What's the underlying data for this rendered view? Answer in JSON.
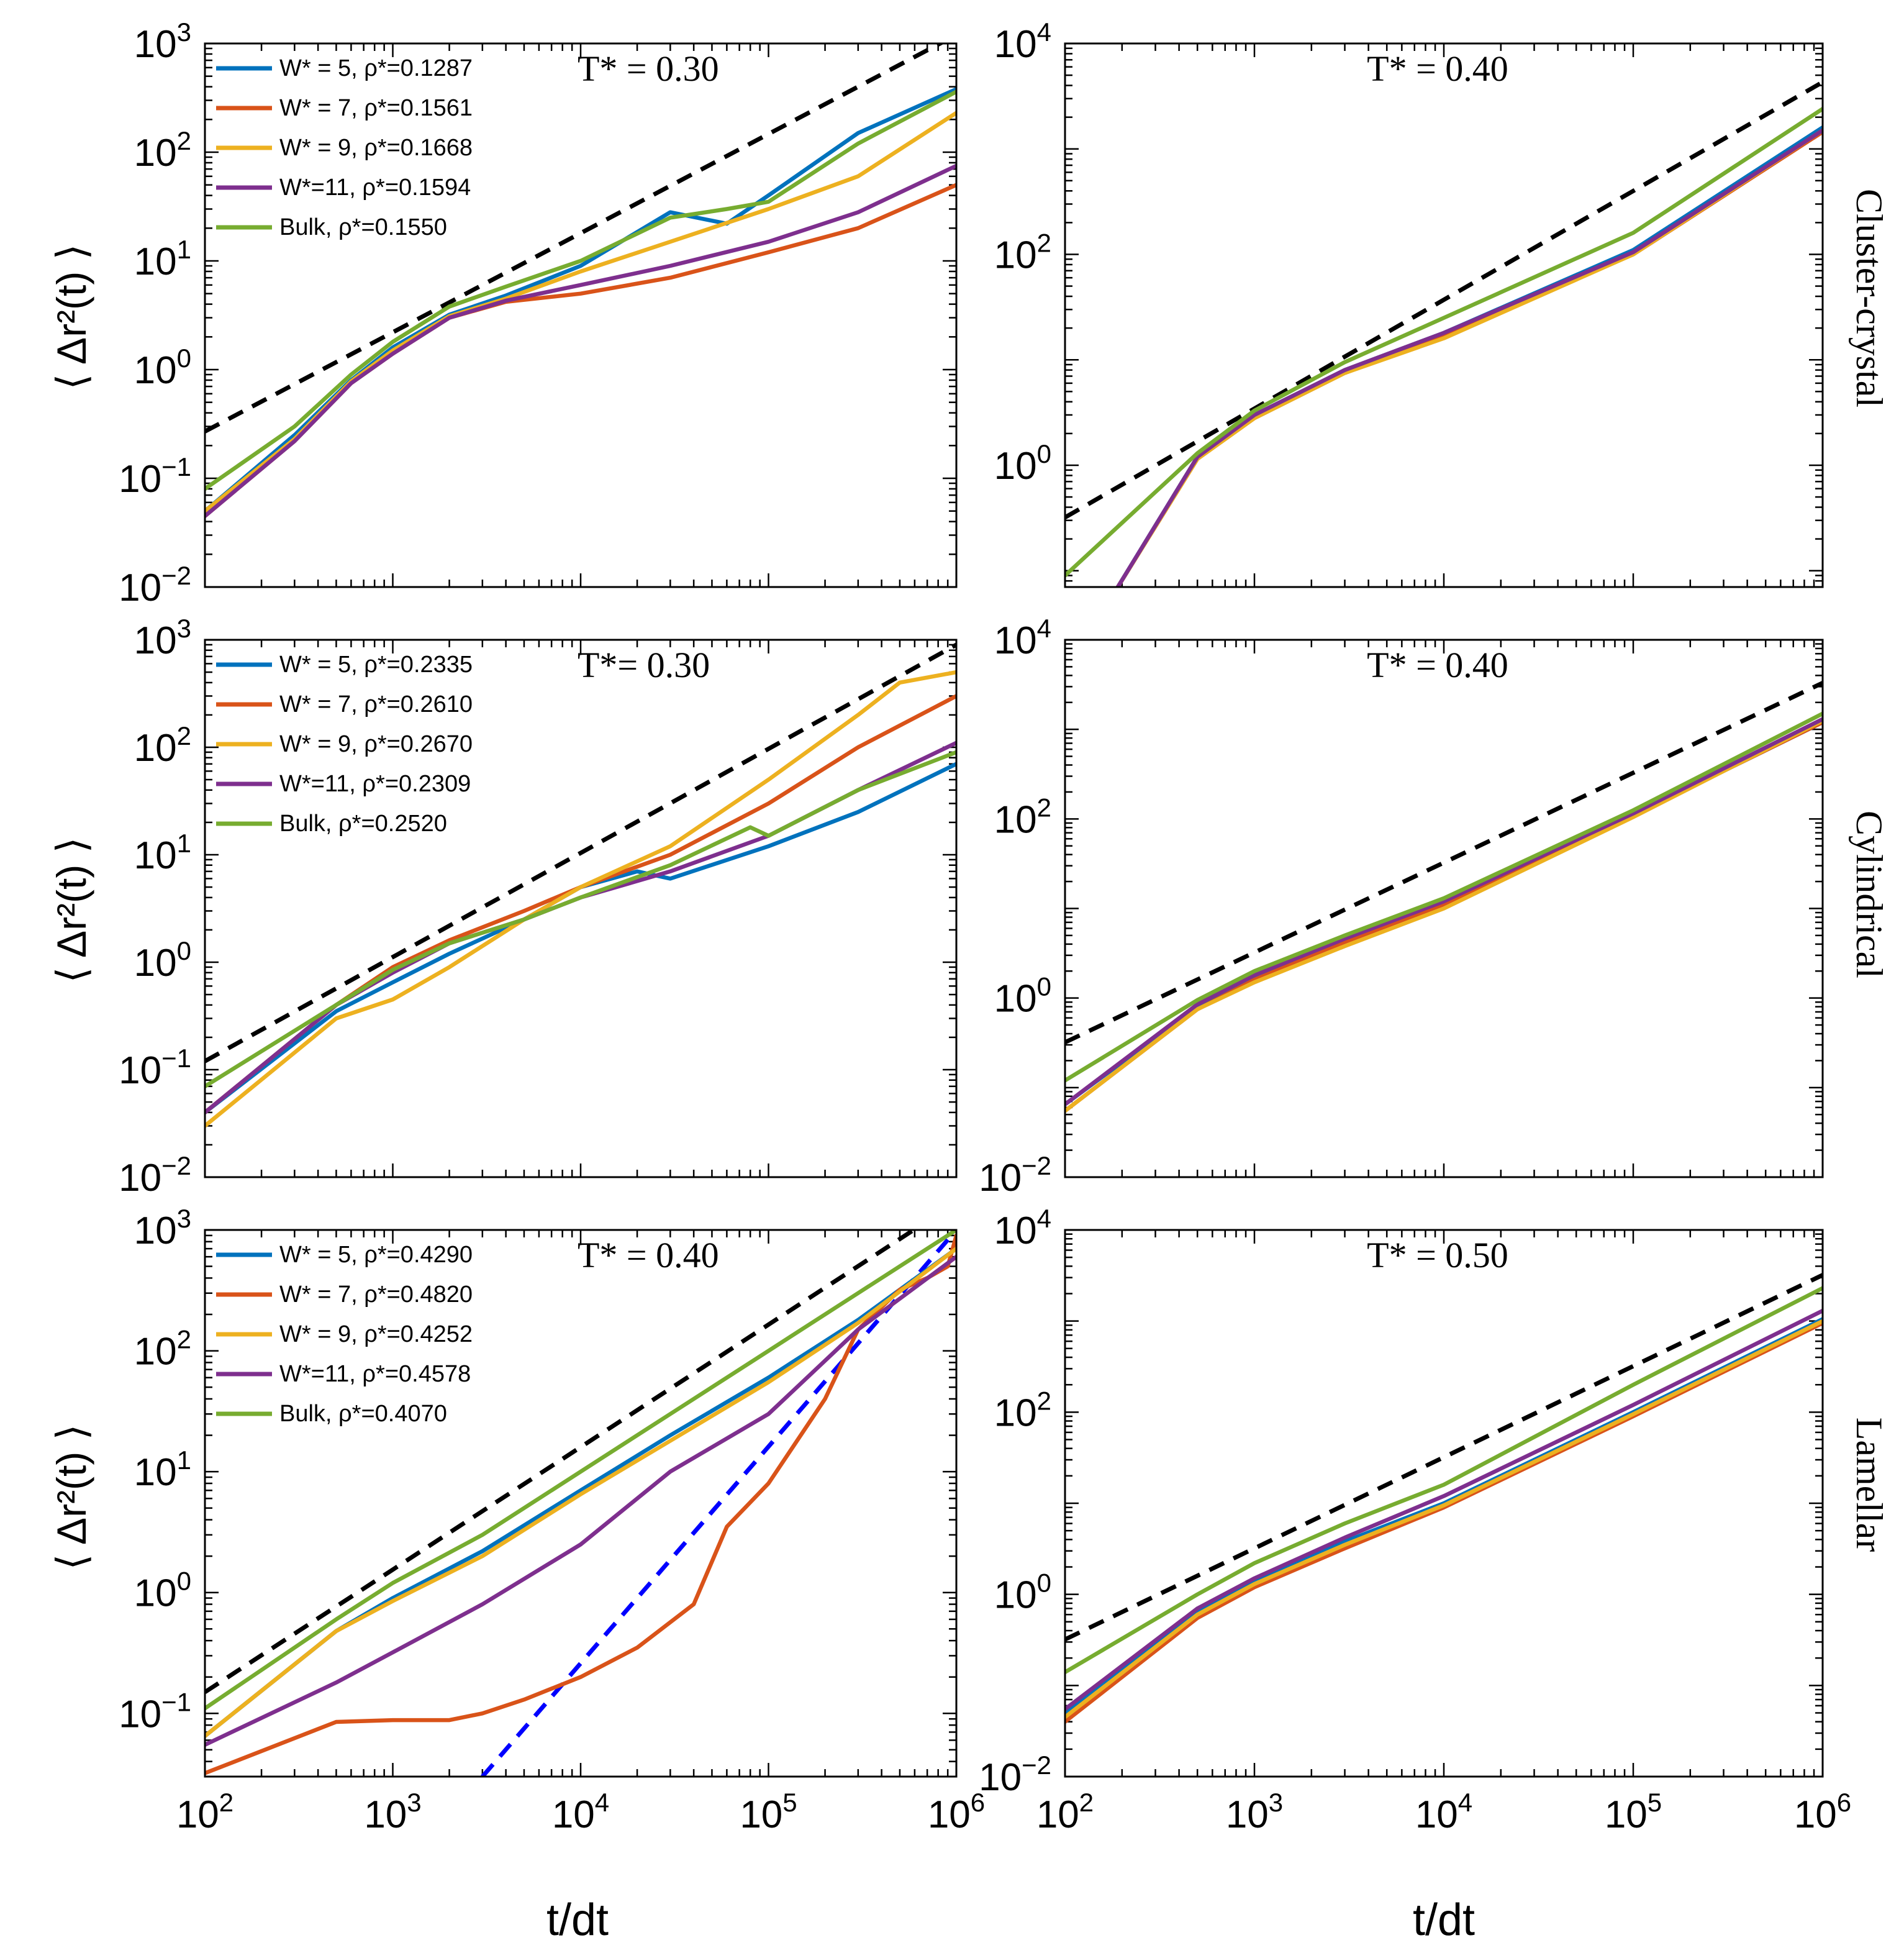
{
  "figure": {
    "xlabel": "t/dt",
    "ylabel": "⟨ Δr²(t) ⟩",
    "colors": {
      "blue": "#0072BD",
      "orange": "#D95319",
      "yellow": "#EDB120",
      "purple": "#7E2F8E",
      "green": "#77AC30",
      "ref_black": "#000000",
      "ref_blue": "#0000FF"
    },
    "x_ticks": [
      "10^2",
      "10^3",
      "10^4",
      "10^5",
      "10^6"
    ],
    "row_labels": [
      "Cluster-crystal",
      "Cylindrical",
      "Lamellar"
    ]
  },
  "chart_data": [
    {
      "id": "cluster-left",
      "type": "line",
      "title": "T* = 0.30",
      "xlim": [
        100,
        1000000
      ],
      "ylim": [
        0.01,
        1000
      ],
      "x_ticks": [
        100,
        1000,
        10000,
        100000,
        1000000
      ],
      "y_ticks": [
        0.01,
        0.1,
        1,
        10,
        100,
        1000
      ],
      "legend": [
        {
          "label": "W* = 5, ρ*=0.1287",
          "color": "blue"
        },
        {
          "label": "W* = 7, ρ*=0.1561",
          "color": "orange"
        },
        {
          "label": "W* = 9, ρ*=0.1668",
          "color": "yellow"
        },
        {
          "label": "W*=11, ρ*=0.1594",
          "color": "purple"
        },
        {
          "label": "Bulk,    ρ*=0.1550",
          "color": "green"
        }
      ],
      "reference_lines": [
        {
          "color": "ref_black",
          "x": [
            100,
            1000000
          ],
          "y": [
            0.27,
            1200
          ]
        }
      ],
      "series": [
        {
          "name": "W* = 5",
          "color": "blue",
          "x": [
            100,
            300,
            600,
            1000,
            2000,
            4000,
            10000,
            30000,
            60000,
            100000,
            300000,
            1000000
          ],
          "y": [
            0.05,
            0.25,
            0.8,
            1.6,
            3.2,
            4.8,
            9,
            28,
            22,
            40,
            150,
            380
          ]
        },
        {
          "name": "W* = 7",
          "color": "orange",
          "x": [
            100,
            300,
            600,
            1000,
            2000,
            4000,
            10000,
            30000,
            100000,
            300000,
            1000000
          ],
          "y": [
            0.045,
            0.22,
            0.75,
            1.4,
            3.0,
            4.2,
            5,
            7,
            12,
            20,
            50
          ]
        },
        {
          "name": "W* = 9",
          "color": "yellow",
          "x": [
            100,
            300,
            600,
            1000,
            2000,
            4000,
            10000,
            30000,
            100000,
            300000,
            1000000
          ],
          "y": [
            0.05,
            0.23,
            0.78,
            1.5,
            3.1,
            4.5,
            8,
            15,
            30,
            60,
            230
          ]
        },
        {
          "name": "W*=11",
          "color": "purple",
          "x": [
            100,
            300,
            600,
            1000,
            2000,
            4000,
            10000,
            30000,
            100000,
            300000,
            1000000
          ],
          "y": [
            0.045,
            0.22,
            0.75,
            1.4,
            3.0,
            4.3,
            6,
            9,
            15,
            28,
            75
          ]
        },
        {
          "name": "Bulk",
          "color": "green",
          "x": [
            100,
            300,
            600,
            1000,
            2000,
            4000,
            10000,
            30000,
            60000,
            100000,
            300000,
            1000000
          ],
          "y": [
            0.08,
            0.3,
            0.9,
            1.8,
            3.8,
            5.8,
            10,
            25,
            30,
            35,
            120,
            360
          ]
        }
      ]
    },
    {
      "id": "cluster-right",
      "type": "line",
      "title": "T* = 0.40",
      "side_label": "Cluster-crystal",
      "xlim": [
        100,
        1000000
      ],
      "ylim": [
        0.07,
        10000
      ],
      "x_ticks": [
        100,
        1000,
        10000,
        100000,
        1000000
      ],
      "y_ticks": [
        1,
        100,
        10000
      ],
      "reference_lines": [
        {
          "color": "ref_black",
          "x": [
            100,
            1000000
          ],
          "y": [
            0.32,
            4300
          ]
        }
      ],
      "series": [
        {
          "name": "W* = 5",
          "color": "blue",
          "x": [
            190,
            500,
            1000,
            3000,
            10000,
            100000,
            1000000
          ],
          "y": [
            0.07,
            1.2,
            3,
            8,
            18,
            110,
            1600
          ]
        },
        {
          "name": "W* = 7",
          "color": "orange",
          "x": [
            190,
            500,
            1000,
            3000,
            10000,
            100000,
            1000000
          ],
          "y": [
            0.07,
            1.15,
            2.8,
            7.5,
            17,
            100,
            1450
          ]
        },
        {
          "name": "W* = 9",
          "color": "yellow",
          "x": [
            190,
            500,
            1000,
            3000,
            10000,
            100000,
            1000000
          ],
          "y": [
            0.07,
            1.15,
            2.8,
            7.5,
            16,
            100,
            1500
          ]
        },
        {
          "name": "W*=11",
          "color": "purple",
          "x": [
            190,
            500,
            1000,
            3000,
            10000,
            100000,
            1000000
          ],
          "y": [
            0.07,
            1.2,
            3,
            8,
            18,
            105,
            1500
          ]
        },
        {
          "name": "Bulk",
          "color": "green",
          "x": [
            100,
            500,
            1000,
            3000,
            10000,
            100000,
            1000000
          ],
          "y": [
            0.09,
            1.3,
            3.3,
            9.5,
            25,
            160,
            2400
          ]
        }
      ]
    },
    {
      "id": "cyl-left",
      "type": "line",
      "title": "T*= 0.30",
      "xlim": [
        100,
        1000000
      ],
      "ylim": [
        0.01,
        1000
      ],
      "x_ticks": [
        100,
        1000,
        10000,
        100000,
        1000000
      ],
      "y_ticks": [
        0.01,
        0.1,
        1,
        10,
        100,
        1000
      ],
      "legend": [
        {
          "label": "W* = 5, ρ*=0.2335",
          "color": "blue"
        },
        {
          "label": "W* = 7, ρ*=0.2610",
          "color": "orange"
        },
        {
          "label": "W* = 9, ρ*=0.2670",
          "color": "yellow"
        },
        {
          "label": "W*=11, ρ*=0.2309",
          "color": "purple"
        },
        {
          "label": "Bulk,    ρ*=0.2520",
          "color": "green"
        }
      ],
      "reference_lines": [
        {
          "color": "ref_black",
          "x": [
            100,
            1000000
          ],
          "y": [
            0.12,
            900
          ]
        }
      ],
      "series": [
        {
          "name": "W* = 5",
          "color": "blue",
          "x": [
            100,
            500,
            1000,
            2000,
            5000,
            10000,
            20000,
            30000,
            100000,
            300000,
            1000000
          ],
          "y": [
            0.04,
            0.35,
            0.65,
            1.2,
            2.5,
            5,
            7,
            6,
            12,
            25,
            70
          ]
        },
        {
          "name": "W* = 7",
          "color": "orange",
          "x": [
            100,
            500,
            1000,
            2000,
            5000,
            10000,
            30000,
            100000,
            300000,
            1000000
          ],
          "y": [
            0.04,
            0.4,
            0.9,
            1.6,
            3,
            5,
            10,
            30,
            100,
            300
          ]
        },
        {
          "name": "W* = 9",
          "color": "yellow",
          "x": [
            100,
            500,
            1000,
            2000,
            5000,
            10000,
            30000,
            100000,
            300000,
            500000,
            1000000
          ],
          "y": [
            0.03,
            0.3,
            0.45,
            0.9,
            2.5,
            5,
            12,
            50,
            200,
            400,
            500
          ]
        },
        {
          "name": "W*=11",
          "color": "purple",
          "x": [
            100,
            500,
            1000,
            2000,
            5000,
            10000,
            30000,
            100000,
            300000,
            1000000
          ],
          "y": [
            0.04,
            0.4,
            0.8,
            1.5,
            2.5,
            4,
            7,
            15,
            40,
            110
          ]
        },
        {
          "name": "Bulk",
          "color": "green",
          "x": [
            100,
            500,
            1000,
            2000,
            5000,
            10000,
            30000,
            80000,
            100000,
            300000,
            1000000
          ],
          "y": [
            0.07,
            0.4,
            0.85,
            1.5,
            2.5,
            4,
            8,
            18,
            15,
            40,
            90
          ]
        }
      ]
    },
    {
      "id": "cyl-right",
      "type": "line",
      "title": "T* = 0.40",
      "side_label": "Cylindrical",
      "xlim": [
        100,
        1000000
      ],
      "ylim": [
        0.01,
        10000
      ],
      "x_ticks": [
        100,
        1000,
        10000,
        100000,
        1000000
      ],
      "y_ticks": [
        0.01,
        1,
        100,
        10000
      ],
      "reference_lines": [
        {
          "color": "ref_black",
          "x": [
            100,
            1000000
          ],
          "y": [
            0.32,
            3300
          ]
        }
      ],
      "series": [
        {
          "name": "W* = 5",
          "color": "blue",
          "x": [
            100,
            500,
            1000,
            3000,
            10000,
            100000,
            1000000
          ],
          "y": [
            0.065,
            0.8,
            1.7,
            4.5,
            12,
            110,
            1200
          ]
        },
        {
          "name": "W* = 7",
          "color": "orange",
          "x": [
            100,
            500,
            1000,
            3000,
            10000,
            100000,
            1000000
          ],
          "y": [
            0.055,
            0.75,
            1.6,
            4.2,
            11,
            110,
            1200
          ]
        },
        {
          "name": "W* = 9",
          "color": "yellow",
          "x": [
            100,
            500,
            1000,
            3000,
            10000,
            100000,
            1000000
          ],
          "y": [
            0.055,
            0.75,
            1.5,
            3.8,
            10,
            105,
            1250
          ]
        },
        {
          "name": "W*=11",
          "color": "purple",
          "x": [
            100,
            500,
            1000,
            3000,
            10000,
            100000,
            1000000
          ],
          "y": [
            0.065,
            0.85,
            1.8,
            4.6,
            12,
            115,
            1300
          ]
        },
        {
          "name": "Bulk",
          "color": "green",
          "x": [
            100,
            500,
            1000,
            3000,
            10000,
            100000,
            1000000
          ],
          "y": [
            0.12,
            0.95,
            2.0,
            5.0,
            13,
            125,
            1500
          ]
        }
      ]
    },
    {
      "id": "lam-left",
      "type": "line",
      "title": "T* = 0.40",
      "xlim": [
        100,
        1000000
      ],
      "ylim": [
        0.03,
        1000
      ],
      "x_ticks": [
        100,
        1000,
        10000,
        100000,
        1000000
      ],
      "y_ticks": [
        0.1,
        1,
        10,
        100,
        1000
      ],
      "legend": [
        {
          "label": "W* = 5, ρ*=0.4290",
          "color": "blue"
        },
        {
          "label": "W* = 7, ρ*=0.4820",
          "color": "orange"
        },
        {
          "label": "W* = 9, ρ*=0.4252",
          "color": "yellow"
        },
        {
          "label": "W*=11, ρ*=0.4578",
          "color": "purple"
        },
        {
          "label": "Bulk,    ρ*=0.4070",
          "color": "green"
        }
      ],
      "reference_lines": [
        {
          "color": "ref_black",
          "x": [
            100,
            1000000
          ],
          "y": [
            0.15,
            1700
          ]
        },
        {
          "color": "ref_blue",
          "x": [
            3000,
            1000000
          ],
          "y": [
            0.03,
            1000
          ]
        }
      ],
      "series": [
        {
          "name": "W* = 5",
          "color": "blue",
          "x": [
            100,
            500,
            1000,
            3000,
            10000,
            30000,
            100000,
            300000,
            1000000
          ],
          "y": [
            0.065,
            0.48,
            0.9,
            2.2,
            7,
            20,
            60,
            180,
            700
          ]
        },
        {
          "name": "W* = 7",
          "color": "orange",
          "x": [
            100,
            500,
            1000,
            2000,
            3000,
            5000,
            10000,
            20000,
            40000,
            60000,
            100000,
            200000,
            300000,
            500000,
            700000,
            900000,
            1000000
          ],
          "y": [
            0.032,
            0.085,
            0.088,
            0.088,
            0.1,
            0.13,
            0.2,
            0.35,
            0.8,
            3.5,
            8,
            40,
            150,
            320,
            400,
            500,
            900
          ]
        },
        {
          "name": "W* = 9",
          "color": "yellow",
          "x": [
            100,
            500,
            1000,
            3000,
            10000,
            30000,
            100000,
            300000,
            1000000
          ],
          "y": [
            0.065,
            0.48,
            0.85,
            2.0,
            6.5,
            18,
            55,
            170,
            700
          ]
        },
        {
          "name": "W*=11",
          "color": "purple",
          "x": [
            100,
            500,
            1000,
            3000,
            10000,
            30000,
            100000,
            300000,
            1000000
          ],
          "y": [
            0.055,
            0.18,
            0.32,
            0.8,
            2.5,
            10,
            30,
            150,
            600
          ]
        },
        {
          "name": "Bulk",
          "color": "green",
          "x": [
            100,
            500,
            1000,
            3000,
            10000,
            30000,
            100000,
            300000,
            1000000
          ],
          "y": [
            0.11,
            0.6,
            1.2,
            3.0,
            10,
            30,
            100,
            300,
            1000
          ]
        }
      ]
    },
    {
      "id": "lam-right",
      "type": "line",
      "title": "T* = 0.50",
      "side_label": "Lamellar",
      "xlim": [
        100,
        1000000
      ],
      "ylim": [
        0.01,
        10000
      ],
      "x_ticks": [
        100,
        1000,
        10000,
        100000,
        1000000
      ],
      "y_ticks": [
        0.01,
        1,
        100,
        10000
      ],
      "reference_lines": [
        {
          "color": "ref_black",
          "x": [
            100,
            1000000
          ],
          "y": [
            0.32,
            3200
          ]
        }
      ],
      "series": [
        {
          "name": "W* = 5",
          "color": "blue",
          "x": [
            100,
            500,
            1000,
            3000,
            10000,
            100000,
            1000000
          ],
          "y": [
            0.05,
            0.65,
            1.4,
            3.8,
            10,
            100,
            1050
          ]
        },
        {
          "name": "W* = 7",
          "color": "orange",
          "x": [
            100,
            500,
            1000,
            3000,
            10000,
            100000,
            1000000
          ],
          "y": [
            0.04,
            0.55,
            1.2,
            3.2,
            9,
            90,
            950
          ]
        },
        {
          "name": "W* = 9",
          "color": "yellow",
          "x": [
            100,
            500,
            1000,
            3000,
            10000,
            100000,
            1000000
          ],
          "y": [
            0.045,
            0.6,
            1.3,
            3.5,
            9.5,
            95,
            1000
          ]
        },
        {
          "name": "W*=11",
          "color": "purple",
          "x": [
            100,
            500,
            1000,
            3000,
            10000,
            100000,
            1000000
          ],
          "y": [
            0.055,
            0.7,
            1.5,
            4.2,
            12,
            120,
            1300
          ]
        },
        {
          "name": "Bulk",
          "color": "green",
          "x": [
            100,
            500,
            1000,
            3000,
            10000,
            100000,
            1000000
          ],
          "y": [
            0.14,
            1.0,
            2.2,
            6.0,
            16,
            200,
            2300
          ]
        }
      ]
    }
  ]
}
